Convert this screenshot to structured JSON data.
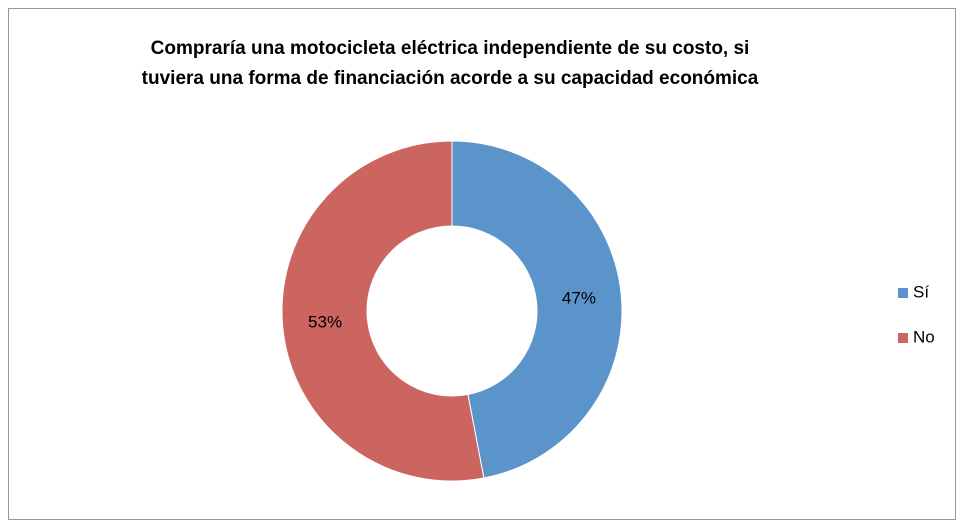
{
  "chart_data": {
    "type": "pie",
    "title": "Compraría una motocicleta eléctrica independiente de su costo, si tuviera una forma de financiación acorde a su capacidad económica",
    "categories": [
      "Sí",
      "No"
    ],
    "values": [
      47,
      53
    ],
    "value_labels": [
      "47%",
      "53%"
    ],
    "colors": [
      "#5b93cb",
      "#cc6460"
    ],
    "donut": true,
    "legend": "right"
  }
}
